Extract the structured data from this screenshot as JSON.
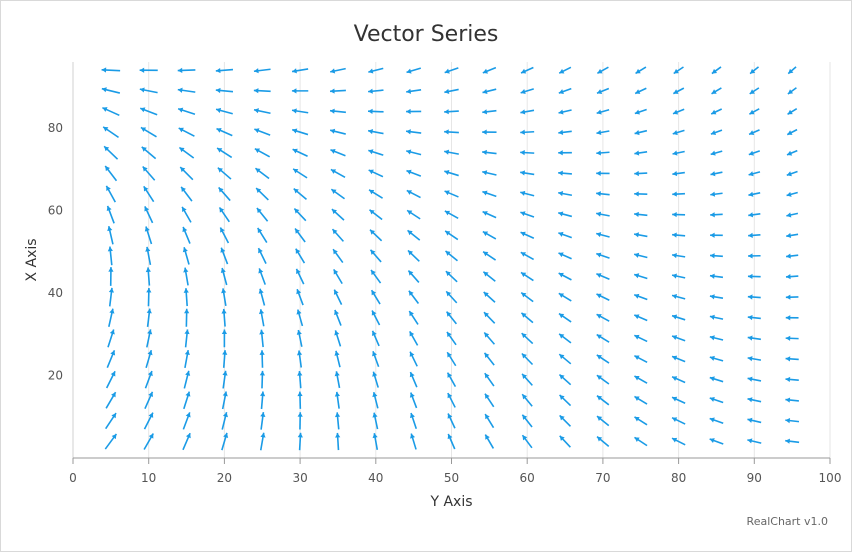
{
  "chart_data": {
    "type": "vector",
    "title": "Vector Series",
    "xlabel": "Y Axis",
    "ylabel": "X Axis",
    "xlim": [
      0,
      100
    ],
    "ylim": [
      0,
      96
    ],
    "x_ticks": [
      "0",
      "10",
      "20",
      "30",
      "40",
      "50",
      "60",
      "70",
      "80",
      "90",
      "100"
    ],
    "y_ticks": [
      "20",
      "40",
      "60",
      "80"
    ],
    "grid": true,
    "color": "#1a9be6",
    "grid_x": [
      5,
      10,
      15,
      20,
      25,
      30,
      35,
      40,
      45,
      50,
      55,
      60,
      65,
      70,
      75,
      80,
      85,
      90,
      95
    ],
    "grid_y": [
      4,
      9,
      14,
      19,
      24,
      29,
      34,
      39,
      44,
      49,
      54,
      59,
      64,
      69,
      74,
      79,
      84,
      89,
      94
    ],
    "field_note": "Vectors rotate with position: pointing up-right at lower-left, up at left column middle, left at top and at mid-right, down-right at top-right."
  },
  "credit": "RealChart v1.0"
}
